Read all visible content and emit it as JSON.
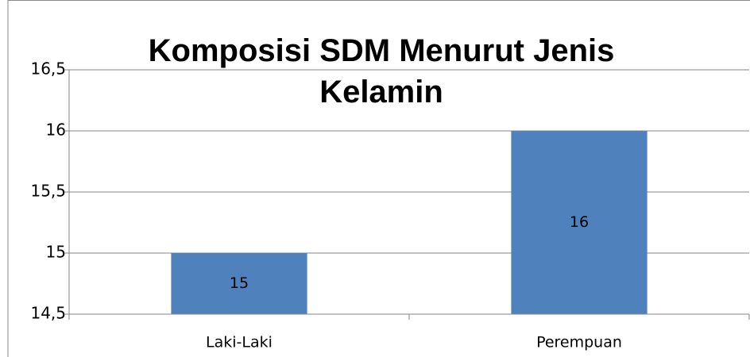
{
  "chart_data": {
    "type": "bar",
    "title": "Komposisi SDM Menurut Jenis Kelamin",
    "categories": [
      "Laki-Laki",
      "Perempuan"
    ],
    "values": [
      15,
      16
    ],
    "color": "#4f81bd",
    "ylim": [
      14.5,
      16.5
    ],
    "yticks": [
      {
        "value": 14.5,
        "label": "14,5"
      },
      15,
      {
        "value": 15.5,
        "label": "15,5"
      },
      16,
      {
        "value": 16.5,
        "label": "16,5"
      }
    ],
    "grid": true
  }
}
